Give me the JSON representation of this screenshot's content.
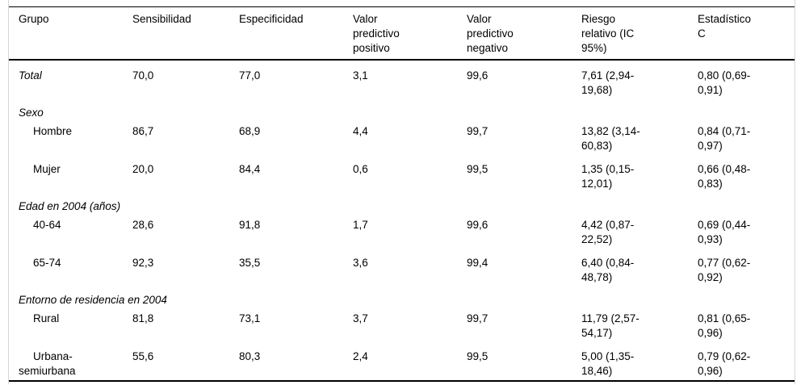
{
  "table": {
    "columns": [
      "Grupo",
      "Sensibilidad",
      "Especificidad",
      "Valor predictivo positivo",
      "Valor predictivo negativo",
      "Riesgo relativo (IC 95%)",
      "Estadístico C"
    ],
    "column_slugs": [
      "grupo",
      "sensibilidad",
      "especificidad",
      "valor-predictivo-positivo",
      "valor-predictivo-negativo",
      "riesgo-relativo-ic-95",
      "estadistico-c"
    ],
    "rows": [
      {
        "kind": "data",
        "label": "Total",
        "italic": true,
        "indent": false,
        "values": [
          "70,0",
          "77,0",
          "3,1",
          "99,6",
          "7,61 (2,94-19,68)",
          "0,80 (0,69-0,91)"
        ]
      },
      {
        "kind": "section",
        "label": "Sexo"
      },
      {
        "kind": "data",
        "label": "Hombre",
        "italic": false,
        "indent": true,
        "values": [
          "86,7",
          "68,9",
          "4,4",
          "99,7",
          "13,82 (3,14-60,83)",
          "0,84 (0,71-0,97)"
        ]
      },
      {
        "kind": "data",
        "label": "Mujer",
        "italic": false,
        "indent": true,
        "values": [
          "20,0",
          "84,4",
          "0,6",
          "99,5",
          "1,35 (0,15-12,01)",
          "0,66 (0,48-0,83)"
        ]
      },
      {
        "kind": "section",
        "label": "Edad en 2004 (años)"
      },
      {
        "kind": "data",
        "label": "40-64",
        "italic": false,
        "indent": true,
        "values": [
          "28,6",
          "91,8",
          "1,7",
          "99,6",
          "4,42 (0,87-22,52)",
          "0,69 (0,44-0,93)"
        ]
      },
      {
        "kind": "data",
        "label": "65-74",
        "italic": false,
        "indent": true,
        "values": [
          "92,3",
          "35,5",
          "3,6",
          "99,4",
          "6,40 (0,84-48,78)",
          "0,77 (0,62-0,92)"
        ]
      },
      {
        "kind": "section",
        "label": "Entorno de residencia en 2004"
      },
      {
        "kind": "data",
        "label": "Rural",
        "italic": false,
        "indent": true,
        "values": [
          "81,8",
          "73,1",
          "3,7",
          "99,7",
          "11,79 (2,57-54,17)",
          "0,81 (0,65-0,96)"
        ]
      },
      {
        "kind": "data",
        "label": "Urbana-semiurbana",
        "italic": false,
        "indent": true,
        "values": [
          "55,6",
          "80,3",
          "2,4",
          "99,5",
          "5,00 (1,35-18,46)",
          "0,79 (0,62-0,96)"
        ]
      }
    ],
    "colors": {
      "text": "#000000",
      "rule": "#000000",
      "side_border": "#d6d6d6",
      "background": "#ffffff"
    }
  }
}
